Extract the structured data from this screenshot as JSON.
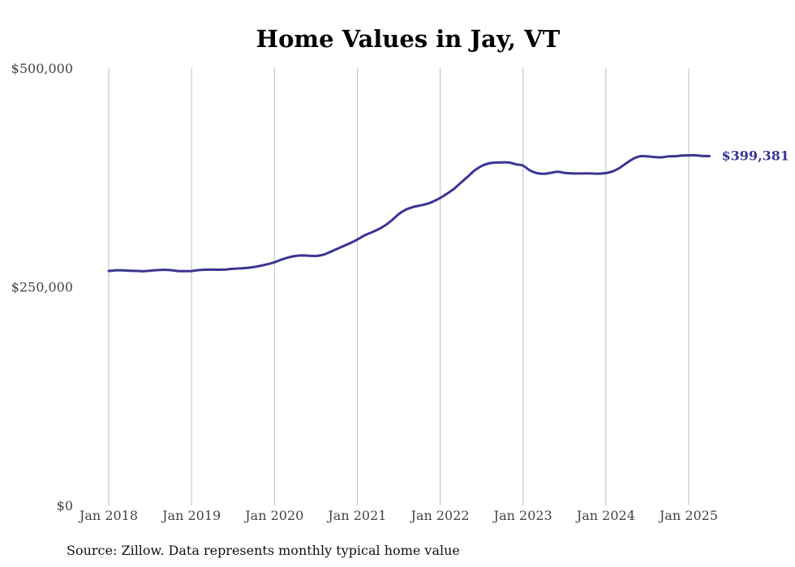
{
  "chart_data": {
    "type": "line",
    "title": "Home Values in Jay, VT",
    "source": "Source: Zillow. Data represents monthly typical home value",
    "xlabel": "",
    "ylabel": "",
    "ylim": [
      0,
      500000
    ],
    "xlim": [
      "2018-01",
      "2025-04"
    ],
    "y_ticks": [
      {
        "value": 0,
        "label": "$0"
      },
      {
        "value": 250000,
        "label": "$250,000"
      },
      {
        "value": 500000,
        "label": "$500,000"
      }
    ],
    "x_ticks": [
      {
        "value": "2018-01",
        "label": "Jan 2018"
      },
      {
        "value": "2019-01",
        "label": "Jan 2019"
      },
      {
        "value": "2020-01",
        "label": "Jan 2020"
      },
      {
        "value": "2021-01",
        "label": "Jan 2021"
      },
      {
        "value": "2022-01",
        "label": "Jan 2022"
      },
      {
        "value": "2023-01",
        "label": "Jan 2023"
      },
      {
        "value": "2024-01",
        "label": "Jan 2024"
      },
      {
        "value": "2025-01",
        "label": "Jan 2025"
      }
    ],
    "grid": "vertical",
    "series": [
      {
        "color": "#3b3591",
        "end_label": "$399,381",
        "points": [
          [
            "2018-01",
            268000
          ],
          [
            "2018-02",
            268800
          ],
          [
            "2018-03",
            268700
          ],
          [
            "2018-04",
            268300
          ],
          [
            "2018-05",
            268200
          ],
          [
            "2018-06",
            267700
          ],
          [
            "2018-07",
            268400
          ],
          [
            "2018-08",
            269000
          ],
          [
            "2018-09",
            269400
          ],
          [
            "2018-10",
            269000
          ],
          [
            "2018-11",
            268000
          ],
          [
            "2018-12",
            267800
          ],
          [
            "2019-01",
            268000
          ],
          [
            "2019-02",
            269000
          ],
          [
            "2019-03",
            269500
          ],
          [
            "2019-04",
            269600
          ],
          [
            "2019-05",
            269500
          ],
          [
            "2019-06",
            269800
          ],
          [
            "2019-07",
            270500
          ],
          [
            "2019-08",
            271000
          ],
          [
            "2019-09",
            271500
          ],
          [
            "2019-10",
            272500
          ],
          [
            "2019-11",
            274000
          ],
          [
            "2019-12",
            275800
          ],
          [
            "2020-01",
            278000
          ],
          [
            "2020-02",
            281000
          ],
          [
            "2020-03",
            283500
          ],
          [
            "2020-04",
            285200
          ],
          [
            "2020-05",
            285800
          ],
          [
            "2020-06",
            285500
          ],
          [
            "2020-07",
            285200
          ],
          [
            "2020-08",
            286500
          ],
          [
            "2020-09",
            289500
          ],
          [
            "2020-10",
            293000
          ],
          [
            "2020-11",
            296500
          ],
          [
            "2020-12",
            300000
          ],
          [
            "2021-01",
            304000
          ],
          [
            "2021-02",
            308500
          ],
          [
            "2021-03",
            312000
          ],
          [
            "2021-04",
            315500
          ],
          [
            "2021-05",
            320000
          ],
          [
            "2021-06",
            326000
          ],
          [
            "2021-07",
            333000
          ],
          [
            "2021-08",
            338000
          ],
          [
            "2021-09",
            341000
          ],
          [
            "2021-10",
            342800
          ],
          [
            "2021-11",
            344500
          ],
          [
            "2021-12",
            347500
          ],
          [
            "2022-01",
            351500
          ],
          [
            "2022-02",
            356500
          ],
          [
            "2022-03",
            362000
          ],
          [
            "2022-04",
            369000
          ],
          [
            "2022-05",
            376000
          ],
          [
            "2022-06",
            383000
          ],
          [
            "2022-07",
            388000
          ],
          [
            "2022-08",
            391000
          ],
          [
            "2022-09",
            392000
          ],
          [
            "2022-10",
            392200
          ],
          [
            "2022-11",
            392000
          ],
          [
            "2022-12",
            390000
          ],
          [
            "2023-01",
            388500
          ],
          [
            "2023-02",
            383000
          ],
          [
            "2023-03",
            380000
          ],
          [
            "2023-04",
            379200
          ],
          [
            "2023-05",
            380200
          ],
          [
            "2023-06",
            381500
          ],
          [
            "2023-07",
            380200
          ],
          [
            "2023-08",
            379600
          ],
          [
            "2023-09",
            379500
          ],
          [
            "2023-10",
            379600
          ],
          [
            "2023-11",
            379500
          ],
          [
            "2023-12",
            379300
          ],
          [
            "2024-01",
            380000
          ],
          [
            "2024-02",
            382000
          ],
          [
            "2024-03",
            386000
          ],
          [
            "2024-04",
            391500
          ],
          [
            "2024-05",
            396500
          ],
          [
            "2024-06",
            399300
          ],
          [
            "2024-07",
            399200
          ],
          [
            "2024-08",
            398300
          ],
          [
            "2024-09",
            398000
          ],
          [
            "2024-10",
            399000
          ],
          [
            "2024-11",
            399300
          ],
          [
            "2024-12",
            400000
          ],
          [
            "2025-01",
            400300
          ],
          [
            "2025-02",
            400300
          ],
          [
            "2025-03",
            399600
          ],
          [
            "2025-04",
            399381
          ]
        ]
      }
    ]
  }
}
